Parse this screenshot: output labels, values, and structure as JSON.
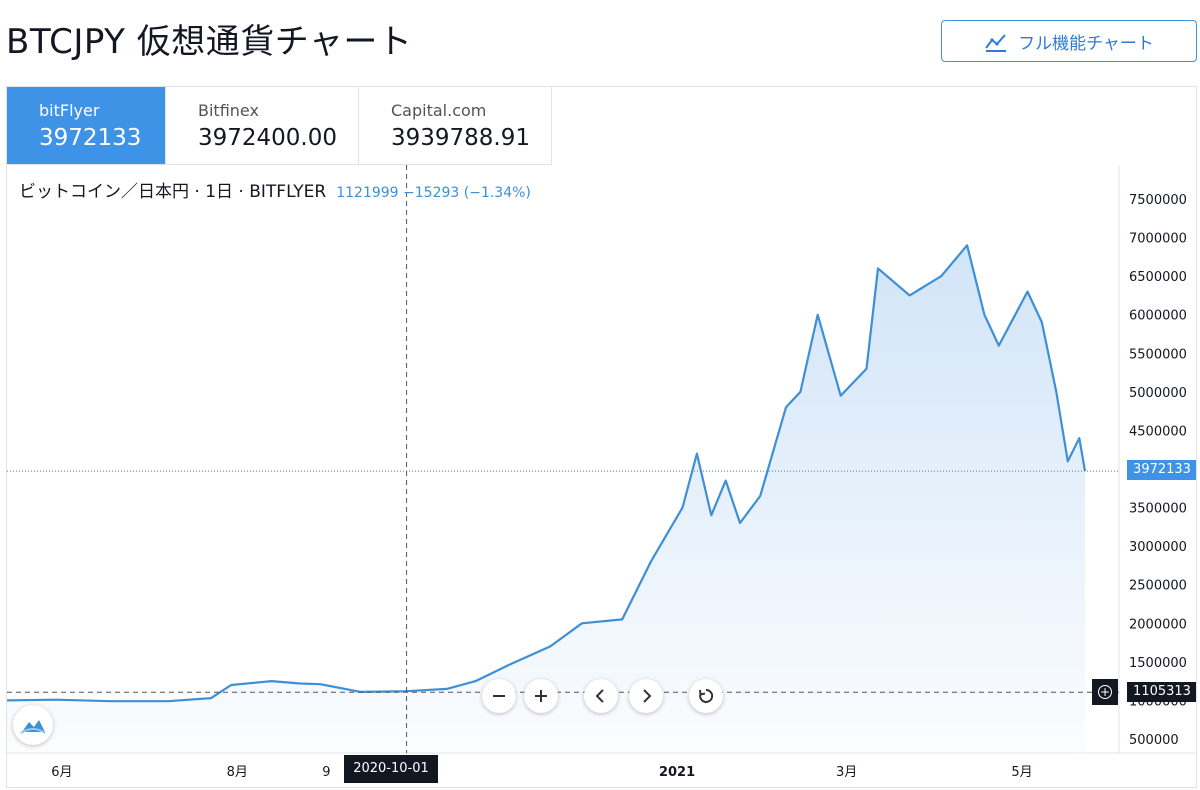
{
  "header": {
    "title": "BTCJPY 仮想通貨チャート",
    "full_chart_label": "フル機能チャート"
  },
  "tabs": [
    {
      "exchange": "bitFlyer",
      "price": "3972133",
      "active": true
    },
    {
      "exchange": "Bitfinex",
      "price": "3972400.00",
      "active": false
    },
    {
      "exchange": "Capital.com",
      "price": "3939788.91",
      "active": false
    }
  ],
  "legend": {
    "symbol": "ビットコイン／日本円 · 1日 · BITFLYER",
    "values": "1121999 −15293 (−1.34%)"
  },
  "price_labels": {
    "current": "3972133",
    "crosshair": "1105313"
  },
  "crosshair_date": "2020-10-01",
  "colors": {
    "line": "#3d8fd6",
    "area_top": "#cfe3f7",
    "active_tab": "#3f93e6"
  },
  "controls": [
    "minus-icon",
    "plus-icon",
    "chevron-left-icon",
    "chevron-right-icon",
    "reset-icon"
  ],
  "chart_data": {
    "type": "area",
    "y_ticks": [
      "7500000",
      "7000000",
      "6500000",
      "6000000",
      "5500000",
      "5000000",
      "4500000",
      "4000000",
      "3500000",
      "3000000",
      "2500000",
      "2000000",
      "1500000",
      "1000000",
      "500000"
    ],
    "x_ticks": [
      "6月",
      "8月",
      "9",
      "2021",
      "3月",
      "5月"
    ],
    "ylim": [
      500000,
      7500000
    ],
    "current_price": 3972133,
    "crosshair_price": 1105313,
    "series": [
      {
        "x": [
          "2020-05-15",
          "2020-06-01",
          "2020-06-20",
          "2020-07-10",
          "2020-07-25",
          "2020-08-01",
          "2020-08-15",
          "2020-08-25",
          "2020-09-01",
          "2020-09-15",
          "2020-10-01",
          "2020-10-15",
          "2020-10-25",
          "2020-11-05",
          "2020-11-20",
          "2020-12-01",
          "2020-12-15",
          "2020-12-25",
          "2021-01-05",
          "2021-01-10",
          "2021-01-15",
          "2021-01-20",
          "2021-01-25",
          "2021-02-01",
          "2021-02-10",
          "2021-02-15",
          "2021-02-21",
          "2021-03-01",
          "2021-03-10",
          "2021-03-14",
          "2021-03-25",
          "2021-04-05",
          "2021-04-14",
          "2021-04-20",
          "2021-04-25",
          "2021-05-05",
          "2021-05-10",
          "2021-05-15",
          "2021-05-19",
          "2021-05-23",
          "2021-05-25"
        ],
        "values": [
          1000000,
          1010000,
          990000,
          990000,
          1030000,
          1200000,
          1250000,
          1220000,
          1210000,
          1110000,
          1120000,
          1150000,
          1250000,
          1450000,
          1700000,
          2000000,
          2050000,
          2800000,
          3500000,
          4200000,
          3400000,
          3850000,
          3300000,
          3650000,
          4800000,
          5000000,
          6000000,
          4950000,
          5300000,
          6600000,
          6250000,
          6500000,
          6900000,
          6000000,
          5600000,
          6300000,
          5900000,
          5000000,
          4100000,
          4400000,
          3972133
        ]
      }
    ]
  }
}
